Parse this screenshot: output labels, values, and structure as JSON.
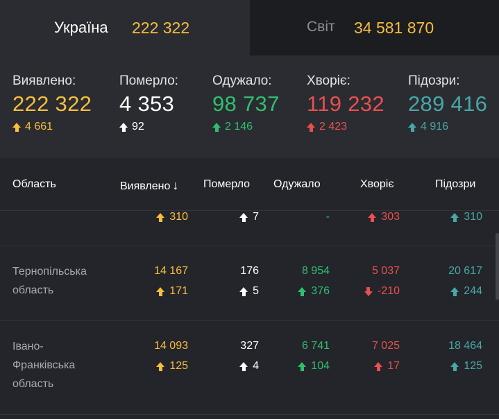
{
  "tabs": {
    "ukraine": {
      "label": "Україна",
      "value": "222 322"
    },
    "world": {
      "label": "Світ",
      "value": "34 581 870"
    }
  },
  "summary": [
    {
      "label": "Виявлено:",
      "value": "222 322",
      "delta": "4 661",
      "dir": "up",
      "color": "#f8be3e"
    },
    {
      "label": "Померло:",
      "value": "4 353",
      "delta": "92",
      "dir": "up",
      "color": "#ffffff"
    },
    {
      "label": "Одужало:",
      "value": "98 737",
      "delta": "2 146",
      "dir": "up",
      "color": "#2fbf71"
    },
    {
      "label": "Хворіє:",
      "value": "119 232",
      "delta": "2 423",
      "dir": "up",
      "color": "#e8504f"
    },
    {
      "label": "Підозри:",
      "value": "289 416",
      "delta": "4 916",
      "dir": "up",
      "color": "#46a8a8"
    }
  ],
  "table": {
    "headers": {
      "region": "Область",
      "detected": "Виявлено",
      "sort_icon": "↓",
      "died": "Померло",
      "recovered": "Одужало",
      "sick": "Хворіє",
      "suspected": "Підозри"
    },
    "partial_row": {
      "detected_delta": "310",
      "died_delta": "7",
      "recovered_delta": "-",
      "sick_delta": "303",
      "suspected_delta": "310"
    },
    "rows": [
      {
        "region_line1": "Тернопільська",
        "region_line2": "область",
        "region_line3": "",
        "detected": "14 167",
        "detected_delta": "171",
        "died": "176",
        "died_delta": "5",
        "recovered": "8 954",
        "recovered_delta": "376",
        "sick": "5 037",
        "sick_delta": "-210",
        "sick_dir": "down",
        "suspected": "20 617",
        "suspected_delta": "244"
      },
      {
        "region_line1": "Івано-",
        "region_line2": "Франківська",
        "region_line3": "область",
        "detected": "14 093",
        "detected_delta": "125",
        "died": "327",
        "died_delta": "4",
        "recovered": "6 741",
        "recovered_delta": "104",
        "sick": "7 025",
        "sick_delta": "17",
        "sick_dir": "up",
        "suspected": "18 464",
        "suspected_delta": "125"
      }
    ]
  },
  "icons": {
    "up": "arrow-up-icon",
    "down": "arrow-down-icon"
  }
}
